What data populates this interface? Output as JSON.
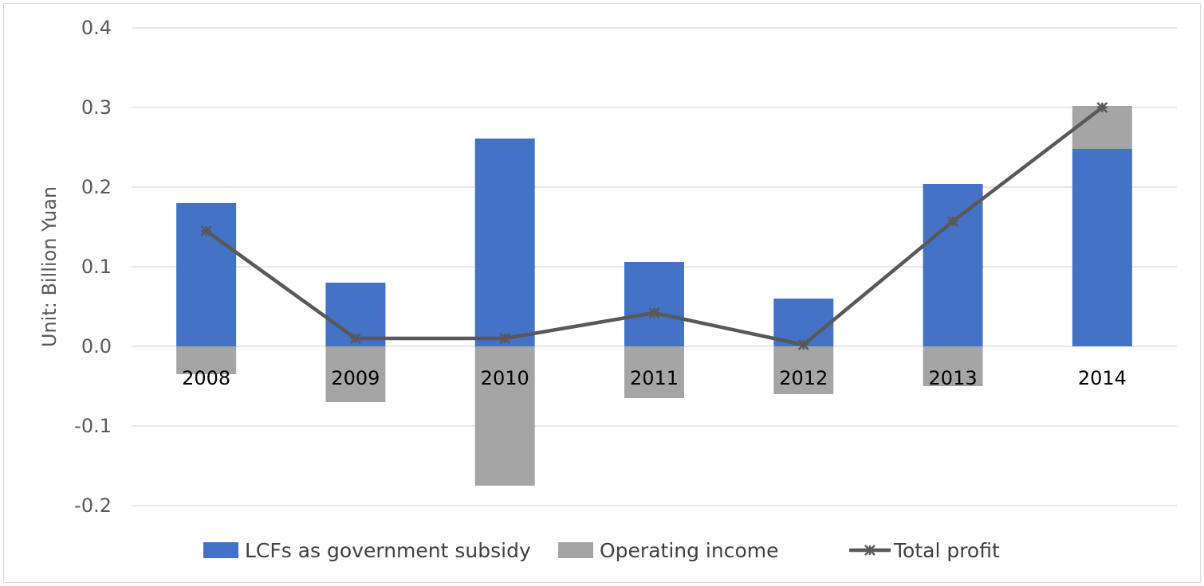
{
  "chart_data": {
    "type": "bar",
    "stacked": true,
    "categories": [
      "2008",
      "2009",
      "2010",
      "2011",
      "2012",
      "2013",
      "2014"
    ],
    "series": [
      {
        "name": "LCFs as government subsidy",
        "kind": "bar",
        "color": "#4472c4",
        "values": [
          0.18,
          0.08,
          0.261,
          0.106,
          0.06,
          0.204,
          0.248
        ]
      },
      {
        "name": "Operating income",
        "kind": "bar",
        "color": "#a5a5a5",
        "values": [
          -0.035,
          -0.07,
          -0.175,
          -0.065,
          -0.06,
          -0.05,
          0.054
        ]
      },
      {
        "name": "Total profit",
        "kind": "line",
        "color": "#595959",
        "marker": "star",
        "values": [
          0.145,
          0.01,
          0.01,
          0.042,
          0.002,
          0.157,
          0.3
        ]
      }
    ],
    "ylabel": "Unit: Billion Yuan",
    "ylim": [
      -0.2,
      0.4
    ],
    "yticks": [
      "-0.2",
      "-0.1",
      "0.0",
      "0.1",
      "0.2",
      "0.3",
      "0.4"
    ],
    "grid": true,
    "legend": "bottom"
  }
}
